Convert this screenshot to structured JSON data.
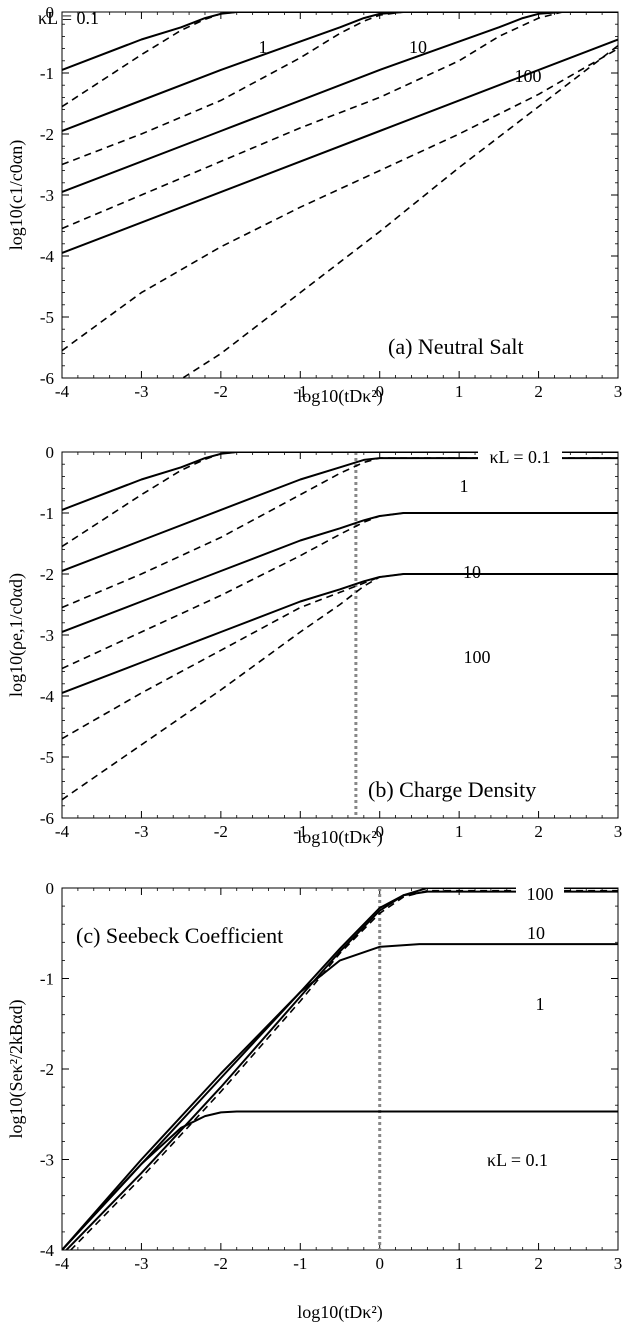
{
  "chart_data": [
    {
      "panel": "a",
      "type": "line",
      "title": "(a) Neutral Salt",
      "xlabel": "log10(tDκ²)",
      "ylabel": "log10(c1/c0αn)",
      "xlim": [
        -4,
        3
      ],
      "ylim": [
        -6,
        0
      ],
      "xticks": [
        "-4",
        "-3",
        "-2",
        "-1",
        "0",
        "1",
        "2",
        "3"
      ],
      "yticks": [
        "0",
        "-1",
        "-2",
        "-3",
        "-4",
        "-5",
        "-6"
      ],
      "curve_labels": [
        "κL = 0.1",
        "1",
        "10",
        "100"
      ],
      "series": [
        {
          "name": "κL = 0.1",
          "style": "solid",
          "x": [
            -4,
            -3,
            -2.5,
            -2.2,
            -2,
            -1.8,
            3
          ],
          "y": [
            -0.95,
            -0.45,
            -0.25,
            -0.1,
            -0.03,
            0,
            0
          ]
        },
        {
          "style": "dashed",
          "x": [
            -4,
            -3,
            -2.5,
            -2.2,
            -2,
            -1.8,
            3
          ],
          "y": [
            -1.55,
            -0.7,
            -0.3,
            -0.12,
            -0.03,
            0,
            0
          ]
        },
        {
          "name": "1",
          "style": "solid",
          "x": [
            -4,
            -2,
            -0.5,
            -0.2,
            0,
            0.3,
            3
          ],
          "y": [
            -1.95,
            -0.95,
            -0.25,
            -0.1,
            -0.03,
            0,
            0
          ]
        },
        {
          "style": "dashed",
          "x": [
            -4,
            -3,
            -2,
            -1,
            -0.5,
            -0.2,
            0,
            0.3,
            3
          ],
          "y": [
            -2.5,
            -2.0,
            -1.45,
            -0.75,
            -0.35,
            -0.15,
            -0.05,
            0,
            0
          ]
        },
        {
          "name": "10",
          "style": "solid",
          "x": [
            -4,
            -2,
            0,
            1.5,
            1.8,
            2.0,
            2.3,
            3
          ],
          "y": [
            -2.95,
            -1.95,
            -0.95,
            -0.25,
            -0.1,
            -0.03,
            0,
            0
          ]
        },
        {
          "style": "dashed",
          "x": [
            -4,
            -3,
            -2,
            -1,
            0,
            1,
            1.5,
            2.0,
            2.3,
            3
          ],
          "y": [
            -3.55,
            -3.0,
            -2.45,
            -1.9,
            -1.4,
            -0.8,
            -0.4,
            -0.1,
            0,
            0
          ]
        },
        {
          "name": "100",
          "style": "solid",
          "x": [
            -4,
            3
          ],
          "y": [
            -3.95,
            -0.45
          ]
        },
        {
          "style": "dashed",
          "x": [
            -4,
            -3,
            -2,
            -1,
            0,
            1,
            2,
            3
          ],
          "y": [
            -5.55,
            -4.6,
            -3.85,
            -3.2,
            -2.6,
            -2.0,
            -1.35,
            -0.6
          ]
        },
        {
          "style": "dashed",
          "x": [
            -2.6,
            -2,
            -1,
            0,
            1,
            2,
            3
          ],
          "y": [
            -6.1,
            -5.6,
            -4.6,
            -3.6,
            -2.55,
            -1.55,
            -0.55
          ]
        }
      ]
    },
    {
      "panel": "b",
      "type": "line",
      "title": "(b) Charge Density",
      "xlabel": "log10(tDκ²)",
      "ylabel": "log10(ρe,1/c0αd)",
      "xlim": [
        -4,
        3
      ],
      "ylim": [
        -6,
        0
      ],
      "xticks": [
        "-4",
        "-3",
        "-2",
        "-1",
        "0",
        "1",
        "2",
        "3"
      ],
      "yticks": [
        "0",
        "-1",
        "-2",
        "-3",
        "-4",
        "-5",
        "-6"
      ],
      "curve_labels": [
        "κL = 0.1",
        "1",
        "10",
        "100"
      ],
      "vline_x": -0.3,
      "series": [
        {
          "name": "κL = 0.1",
          "style": "solid",
          "x": [
            -4,
            -3,
            -2.5,
            -2.2,
            -2,
            -1.8,
            3
          ],
          "y": [
            -0.95,
            -0.45,
            -0.25,
            -0.1,
            -0.03,
            0,
            0
          ]
        },
        {
          "style": "dashed",
          "x": [
            -4,
            -3,
            -2.5,
            -2.2,
            -2,
            -1.8,
            3
          ],
          "y": [
            -1.55,
            -0.7,
            -0.3,
            -0.12,
            -0.03,
            0,
            0
          ]
        },
        {
          "name": "1",
          "style": "solid",
          "x": [
            -4,
            -3,
            -2,
            -1,
            -0.5,
            -0.2,
            0,
            0.3,
            3
          ],
          "y": [
            -1.95,
            -1.45,
            -0.95,
            -0.45,
            -0.25,
            -0.13,
            -0.1,
            -0.1,
            -0.1
          ]
        },
        {
          "style": "dashed",
          "x": [
            -4,
            -3,
            -2,
            -1,
            -0.5,
            -0.2,
            0,
            0.3,
            3
          ],
          "y": [
            -2.55,
            -2.0,
            -1.4,
            -0.7,
            -0.35,
            -0.17,
            -0.1,
            -0.1,
            -0.1
          ]
        },
        {
          "name": "10",
          "style": "solid",
          "x": [
            -4,
            -3,
            -2,
            -1,
            -0.5,
            -0.2,
            0,
            0.3,
            3
          ],
          "y": [
            -2.95,
            -2.45,
            -1.95,
            -1.45,
            -1.25,
            -1.12,
            -1.05,
            -1.0,
            -1.0
          ]
        },
        {
          "style": "dashed",
          "x": [
            -4,
            -3,
            -2,
            -1,
            -0.5,
            -0.2,
            0,
            0.3,
            3
          ],
          "y": [
            -3.55,
            -2.95,
            -2.35,
            -1.7,
            -1.35,
            -1.15,
            -1.05,
            -1.0,
            -1.0
          ]
        },
        {
          "name": "100",
          "style": "solid",
          "x": [
            -4,
            -3,
            -2,
            -1,
            -0.5,
            -0.2,
            0,
            0.3,
            3
          ],
          "y": [
            -3.95,
            -3.45,
            -2.95,
            -2.45,
            -2.25,
            -2.12,
            -2.05,
            -2.0,
            -2.0
          ]
        },
        {
          "style": "dashed",
          "x": [
            -4,
            -3,
            -2,
            -1,
            -0.5,
            -0.2,
            0,
            0.3,
            3
          ],
          "y": [
            -4.7,
            -3.95,
            -3.25,
            -2.55,
            -2.3,
            -2.15,
            -2.05,
            -2.0,
            -2.0
          ]
        },
        {
          "style": "dashed",
          "x": [
            -4,
            -3,
            -2,
            -1,
            -0.5,
            -0.2,
            0,
            0.3,
            3
          ],
          "y": [
            -5.7,
            -4.8,
            -3.9,
            -2.95,
            -2.5,
            -2.2,
            -2.05,
            -2.0,
            -2.0
          ]
        }
      ]
    },
    {
      "panel": "c",
      "type": "line",
      "title": "(c) Seebeck Coefficient",
      "xlabel": "log10(tDκ²)",
      "ylabel": "log10(Seκ²/2kBαd)",
      "xlim": [
        -4,
        3
      ],
      "ylim": [
        -4,
        0
      ],
      "xticks": [
        "-4",
        "-3",
        "-2",
        "-1",
        "0",
        "1",
        "2",
        "3"
      ],
      "yticks": [
        "0",
        "-1",
        "-2",
        "-3",
        "-4"
      ],
      "curve_labels": [
        "100",
        "10",
        "1",
        "κL = 0.1"
      ],
      "vline_x": 0,
      "series": [
        {
          "name": "100",
          "style": "solid",
          "x": [
            -4,
            -3,
            -2,
            -1,
            -0.5,
            0,
            0.3,
            0.6,
            3
          ],
          "y": [
            -4.05,
            -3.15,
            -2.2,
            -1.2,
            -0.7,
            -0.25,
            -0.08,
            0,
            0
          ]
        },
        {
          "name": "10",
          "style": "solid",
          "x": [
            -4,
            -3,
            -2,
            -1,
            -0.5,
            0,
            0.3,
            0.6,
            3
          ],
          "y": [
            -4.0,
            -3.05,
            -2.1,
            -1.15,
            -0.67,
            -0.22,
            -0.08,
            -0.04,
            -0.04
          ]
        },
        {
          "style": "dashed",
          "x": [
            -4,
            -3,
            -2,
            -1,
            -0.5,
            0,
            0.3,
            0.6,
            3
          ],
          "y": [
            -4.1,
            -3.2,
            -2.25,
            -1.25,
            -0.72,
            -0.28,
            -0.1,
            -0.03,
            -0.03
          ]
        },
        {
          "name": "1",
          "style": "solid",
          "x": [
            -4,
            -3,
            -2,
            -1.5,
            -1,
            -0.5,
            0,
            0.5,
            3
          ],
          "y": [
            -4.0,
            -3.0,
            -2.05,
            -1.6,
            -1.15,
            -0.8,
            -0.65,
            -0.62,
            -0.62
          ]
        },
        {
          "name": "κL = 0.1",
          "style": "solid",
          "x": [
            -4,
            -3,
            -2.5,
            -2.2,
            -2,
            -1.8,
            3
          ],
          "y": [
            -4.0,
            -3.05,
            -2.65,
            -2.52,
            -2.48,
            -2.47,
            -2.47
          ]
        }
      ]
    }
  ]
}
